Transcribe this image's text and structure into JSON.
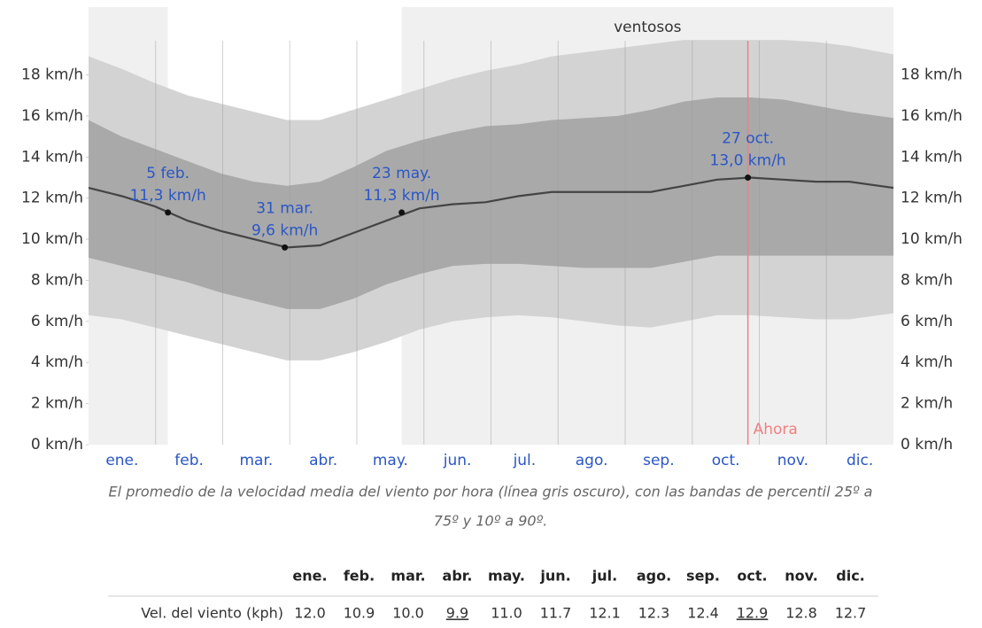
{
  "chart_data": {
    "type": "band-line",
    "xlim": [
      0,
      365
    ],
    "ylim": [
      0,
      21.3
    ],
    "yticks": [
      {
        "value": 0,
        "label": "0 km/h"
      },
      {
        "value": 2,
        "label": "2 km/h"
      },
      {
        "value": 4,
        "label": "4 km/h"
      },
      {
        "value": 6,
        "label": "6 km/h"
      },
      {
        "value": 8,
        "label": "8 km/h"
      },
      {
        "value": 10,
        "label": "10 km/h"
      },
      {
        "value": 12,
        "label": "12 km/h"
      },
      {
        "value": 14,
        "label": "14 km/h"
      },
      {
        "value": 16,
        "label": "16 km/h"
      },
      {
        "value": 18,
        "label": "18 km/h"
      }
    ],
    "categories": [
      "ene.",
      "feb.",
      "mar.",
      "abr.",
      "may.",
      "jun.",
      "jul.",
      "ago.",
      "sep.",
      "oct.",
      "nov.",
      "dic."
    ],
    "x": [
      0,
      15,
      30,
      45,
      60,
      75,
      90,
      105,
      120,
      135,
      150,
      165,
      180,
      195,
      210,
      225,
      240,
      255,
      270,
      285,
      300,
      315,
      330,
      345,
      365
    ],
    "bands": [
      {
        "color": "#d3d3d3",
        "upper": [
          18.9,
          18.3,
          17.6,
          17.0,
          16.6,
          16.2,
          15.8,
          15.8,
          16.3,
          16.8,
          17.3,
          17.8,
          18.2,
          18.5,
          18.9,
          19.1,
          19.3,
          19.5,
          19.7,
          19.7,
          19.7,
          19.7,
          19.6,
          19.4,
          19.0
        ],
        "lower": [
          6.3,
          6.1,
          5.7,
          5.3,
          4.9,
          4.5,
          4.1,
          4.1,
          4.5,
          5.0,
          5.6,
          6.0,
          6.2,
          6.3,
          6.2,
          6.0,
          5.8,
          5.7,
          6.0,
          6.3,
          6.3,
          6.2,
          6.1,
          6.1,
          6.4
        ]
      },
      {
        "color": "#a9a9a9",
        "upper": [
          15.8,
          15.0,
          14.4,
          13.8,
          13.2,
          12.8,
          12.6,
          12.8,
          13.5,
          14.3,
          14.8,
          15.2,
          15.5,
          15.6,
          15.8,
          15.9,
          16.0,
          16.3,
          16.7,
          16.9,
          16.9,
          16.8,
          16.5,
          16.2,
          15.9
        ],
        "lower": [
          9.1,
          8.7,
          8.3,
          7.9,
          7.4,
          7.0,
          6.6,
          6.6,
          7.1,
          7.8,
          8.3,
          8.7,
          8.8,
          8.8,
          8.7,
          8.6,
          8.6,
          8.6,
          8.9,
          9.2,
          9.2,
          9.2,
          9.2,
          9.2,
          9.2
        ]
      }
    ],
    "mean": {
      "color": "#444444",
      "values": [
        12.5,
        12.1,
        11.6,
        10.9,
        10.4,
        10.0,
        9.6,
        9.7,
        10.3,
        10.9,
        11.5,
        11.7,
        11.8,
        12.1,
        12.3,
        12.3,
        12.3,
        12.3,
        12.6,
        12.9,
        13.0,
        12.9,
        12.8,
        12.8,
        12.5
      ]
    },
    "seasons": [
      {
        "start": 0,
        "end": 36
      },
      {
        "start": 142,
        "end": 365,
        "label": "ventosos"
      }
    ],
    "annotations": [
      {
        "x": 36,
        "y": 11.3,
        "lines": [
          "5 feb.",
          "11,3 km/h"
        ]
      },
      {
        "x": 89,
        "y": 9.6,
        "lines": [
          "31 mar.",
          "9,6 km/h"
        ]
      },
      {
        "x": 142,
        "y": 11.3,
        "lines": [
          "23 may.",
          "11,3 km/h"
        ]
      },
      {
        "x": 299,
        "y": 13.0,
        "lines": [
          "27 oct.",
          "13,0 km/h"
        ]
      }
    ],
    "now": {
      "x": 299,
      "label": "Ahora"
    },
    "caption": [
      "El promedio de la velocidad media del viento por hora (línea gris oscuro), con las bandas de percentil 25º a",
      "75º y 10º a 90º."
    ]
  },
  "table": {
    "header": [
      "ene.",
      "feb.",
      "mar.",
      "abr.",
      "may.",
      "jun.",
      "jul.",
      "ago.",
      "sep.",
      "oct.",
      "nov.",
      "dic."
    ],
    "rows": [
      {
        "label": "Vel. del viento (kph)",
        "cells": [
          "12.0",
          "10.9",
          "10.0",
          "9.9",
          "11.0",
          "11.7",
          "12.1",
          "12.3",
          "12.4",
          "12.9",
          "12.8",
          "12.7"
        ],
        "underline": [
          3,
          9
        ]
      }
    ]
  }
}
